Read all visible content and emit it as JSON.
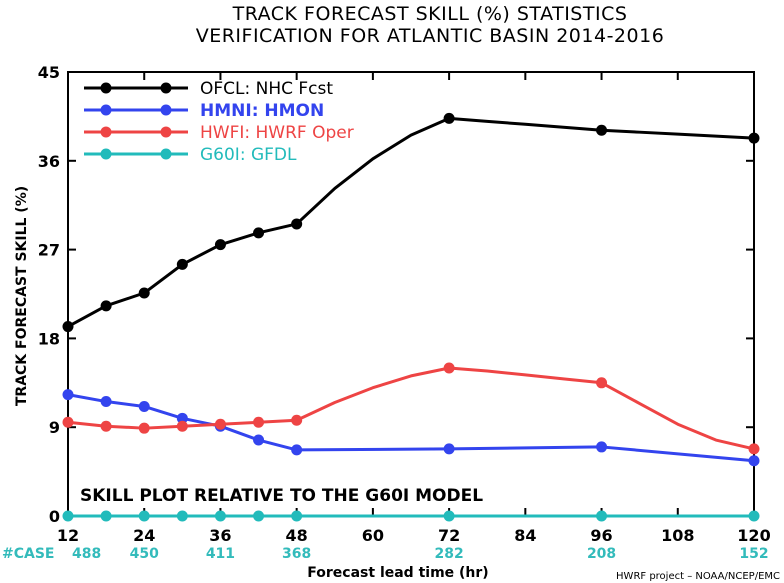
{
  "chart_data": {
    "type": "line",
    "title": "TRACK FORECAST SKILL (%) STATISTICS",
    "subtitle": "VERIFICATION FOR ATLANTIC BASIN 2014-2016",
    "xlabel": "Forecast lead time (hr)",
    "ylabel": "TRACK FORECAST SKILL (%)",
    "xlim": [
      12,
      120
    ],
    "ylim": [
      0,
      45
    ],
    "xticks": [
      12,
      24,
      36,
      48,
      60,
      72,
      84,
      96,
      108,
      120
    ],
    "yticks": [
      0,
      9,
      18,
      27,
      36,
      45
    ],
    "grid": false,
    "legend_position": "top-left",
    "series": [
      {
        "name": "OFCL: NHC Fcst",
        "color": "#000000",
        "x": [
          12,
          18,
          24,
          30,
          36,
          42,
          48,
          54,
          60,
          66,
          72,
          78,
          84,
          90,
          96,
          102,
          108,
          114,
          120
        ],
        "y": [
          19.2,
          21.3,
          22.6,
          25.5,
          27.5,
          28.7,
          29.6,
          33.2,
          36.2,
          38.6,
          40.3,
          40.0,
          39.7,
          39.4,
          39.1,
          38.9,
          38.7,
          38.5,
          38.3
        ],
        "markers_x": [
          12,
          18,
          24,
          30,
          36,
          42,
          48,
          72,
          96,
          120
        ]
      },
      {
        "name": "HMNI: HMON",
        "color": "#3344ee",
        "x": [
          12,
          18,
          24,
          30,
          36,
          42,
          48,
          72,
          96,
          120
        ],
        "y": [
          12.3,
          11.6,
          11.1,
          9.9,
          9.1,
          7.7,
          6.7,
          6.8,
          7.0,
          5.6
        ],
        "markers_x": [
          12,
          18,
          24,
          30,
          36,
          42,
          48,
          72,
          96,
          120
        ]
      },
      {
        "name": "HWFI: HWRF Oper",
        "color": "#ee4444",
        "x": [
          12,
          18,
          24,
          30,
          36,
          42,
          48,
          54,
          60,
          66,
          72,
          78,
          84,
          90,
          96,
          102,
          108,
          114,
          120
        ],
        "y": [
          9.5,
          9.1,
          8.9,
          9.1,
          9.3,
          9.5,
          9.7,
          11.5,
          13.0,
          14.2,
          15.0,
          14.7,
          14.3,
          13.9,
          13.5,
          11.4,
          9.3,
          7.7,
          6.8
        ],
        "markers_x": [
          12,
          18,
          24,
          30,
          36,
          42,
          48,
          72,
          96,
          120
        ]
      },
      {
        "name": "G60I: GFDL",
        "color": "#22bbbb",
        "x": [
          12,
          18,
          24,
          30,
          36,
          42,
          48,
          72,
          96,
          120
        ],
        "y": [
          0,
          0,
          0,
          0,
          0,
          0,
          0,
          0,
          0,
          0
        ],
        "markers_x": [
          12,
          18,
          24,
          30,
          36,
          42,
          48,
          72,
          96,
          120
        ]
      }
    ],
    "annotation": "SKILL PLOT RELATIVE TO THE G60I MODEL",
    "case_label": "#CASE",
    "cases": [
      {
        "x": 12,
        "n": "488"
      },
      {
        "x": 24,
        "n": "450"
      },
      {
        "x": 36,
        "n": "411"
      },
      {
        "x": 48,
        "n": "368"
      },
      {
        "x": 72,
        "n": "282"
      },
      {
        "x": 96,
        "n": "208"
      },
      {
        "x": 120,
        "n": "152"
      }
    ],
    "credit": "HWRF project – NOAA/NCEP/EMC"
  }
}
